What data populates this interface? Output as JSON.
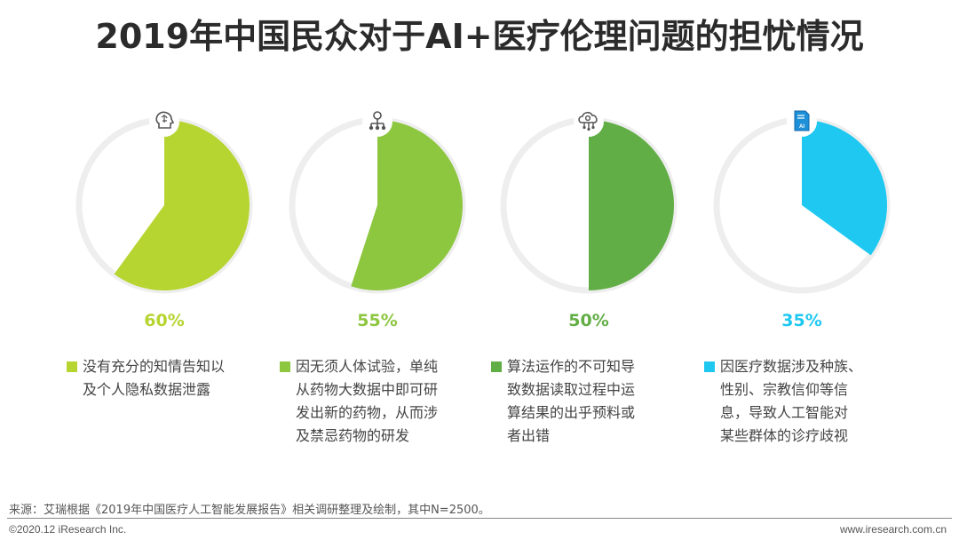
{
  "title": "2019年中国民众对于AI+医疗伦理问题的担忧情况",
  "chart_data": {
    "type": "pie",
    "charts": [
      {
        "value": 60,
        "label": "60%",
        "color": "#b6d531",
        "icon": "brain-head-icon",
        "description": [
          "没有充分的知情告知以",
          "及个人隐私数据泄露"
        ]
      },
      {
        "value": 55,
        "label": "55%",
        "color": "#8dc63f",
        "icon": "network-nodes-icon",
        "description": [
          "因无须人体试验，单纯",
          "从药物大数据中即可研",
          "发出新的药物，从而涉",
          "及禁忌药物的研发"
        ]
      },
      {
        "value": 50,
        "label": "50%",
        "color": "#62ae46",
        "icon": "cloud-gear-icon",
        "description": [
          "算法运作的不可知导",
          "致数据读取过程中运",
          "算结果的出乎预料或",
          "者出错"
        ]
      },
      {
        "value": 35,
        "label": "35%",
        "color": "#1ec8f0",
        "icon": "ai-document-icon",
        "description": [
          "因医疗数据涉及种族、",
          "性别、宗教信仰等信",
          "息，导致人工智能对",
          "某些群体的诊疗歧视"
        ]
      }
    ]
  },
  "footer": {
    "source": "来源：艾瑞根据《2019年中国医疗人工智能发展报告》相关调研整理及绘制，其中N=2500。",
    "copyright": "©2020.12 iResearch Inc.",
    "website": "www.iresearch.com.cn"
  },
  "colors": {
    "ring": "#eeeeee",
    "icon": "#555555"
  }
}
